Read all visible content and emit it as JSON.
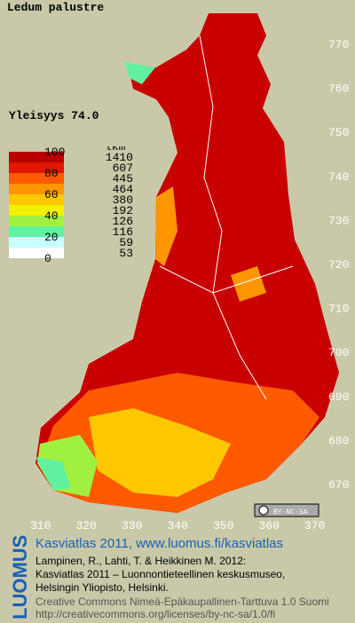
{
  "title": "Ledum palustre",
  "frequency": "Yleisyys 74.0",
  "legend": {
    "scale_labels": [
      "100",
      "80",
      "60",
      "40",
      "20",
      "0"
    ],
    "count_header": "lkm",
    "counts": [
      "1410",
      "607",
      "445",
      "464",
      "380",
      "192",
      "126",
      "116",
      "59",
      "53"
    ],
    "colors": [
      "#b80000",
      "#e01800",
      "#ff5a00",
      "#ff9600",
      "#ffc800",
      "#f0f000",
      "#a0f040",
      "#60f0a0",
      "#c8ffff",
      "#ffffff"
    ]
  },
  "grid": {
    "y_labels": [
      "770",
      "760",
      "750",
      "740",
      "730",
      "720",
      "710",
      "700",
      "690",
      "680",
      "670"
    ],
    "x_labels": [
      "310",
      "320",
      "330",
      "340",
      "350",
      "360",
      "370"
    ]
  },
  "badge": "BY-NC-SA",
  "logo": "LUOMUS",
  "footer": {
    "headline": "Kasviatlas 2011, www.luomus.fi/kasviatlas",
    "citation": [
      "Lampinen, R., Lahti, T. & Heikkinen M. 2012:",
      "Kasviatlas 2011 – Luonnontieteellinen keskusmuseo,",
      "Helsingin Yliopisto, Helsinki."
    ],
    "license": [
      "Creative Commons Nimeä-Epäkaupallinen-Tarttuva 1.0 Suomi",
      "http://creativecommons.org/licenses/by-nc-sa/1.0/fi"
    ]
  }
}
